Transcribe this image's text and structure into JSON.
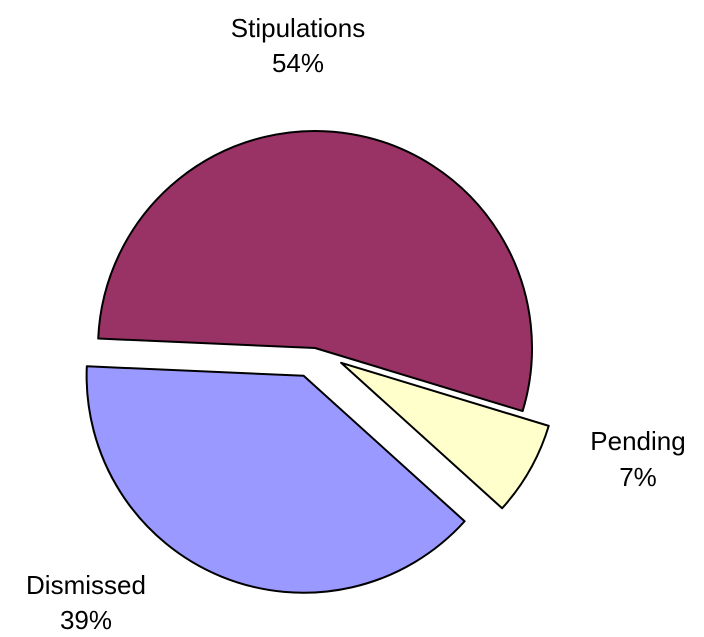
{
  "chart_data": {
    "type": "pie",
    "title": "",
    "slices": [
      {
        "name": "Stipulations",
        "value": 54,
        "value_label": "54%",
        "color": "#993366",
        "exploded": false
      },
      {
        "name": "Pending",
        "value": 7,
        "value_label": "7%",
        "color": "#FFFFCC",
        "exploded": true
      },
      {
        "name": "Dismissed",
        "value": 39,
        "value_label": "39%",
        "color": "#9999FF",
        "exploded": true
      }
    ],
    "legend": "none",
    "labels_outside": true
  }
}
